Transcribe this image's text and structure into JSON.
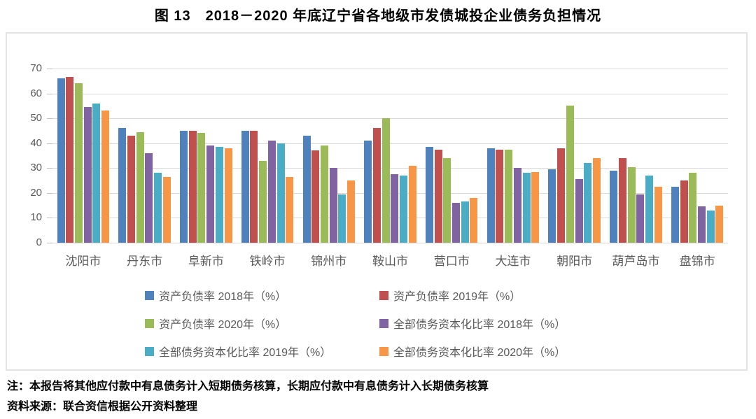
{
  "title": "图 13　2018－2020 年底辽宁省各地级市发债城投企业债务负担情况",
  "chart_data": {
    "type": "bar",
    "categories": [
      "沈阳市",
      "丹东市",
      "阜新市",
      "铁岭市",
      "锦州市",
      "鞍山市",
      "营口市",
      "大连市",
      "朝阳市",
      "葫芦岛市",
      "盘锦市"
    ],
    "series": [
      {
        "name": "资产负债率 2018年（%）",
        "color": "#4F81BD",
        "values": [
          66,
          46,
          45,
          45,
          43,
          41,
          38.5,
          38,
          29.5,
          29,
          22.5
        ]
      },
      {
        "name": "资产负债率 2019年（%）",
        "color": "#C0504D",
        "values": [
          66.5,
          43,
          45,
          45,
          37,
          46,
          37.5,
          37.5,
          38,
          34,
          25
        ]
      },
      {
        "name": "资产负债率 2020年（%）",
        "color": "#9BBB59",
        "values": [
          64,
          44.5,
          44,
          33,
          39,
          50,
          34,
          37.5,
          55,
          30.5,
          28
        ]
      },
      {
        "name": "全部债务资本化比率 2018年（%）",
        "color": "#8064A2",
        "values": [
          54.5,
          36,
          39,
          41,
          30,
          27.5,
          16,
          30,
          25.5,
          19.5,
          14.5
        ]
      },
      {
        "name": "全部债务资本化比率 2019年（%）",
        "color": "#4BACC6",
        "values": [
          56,
          28,
          38.5,
          40,
          19.5,
          27,
          16.5,
          28,
          32,
          27,
          13
        ]
      },
      {
        "name": "全部债务资本化比率 2020年（%）",
        "color": "#F79646",
        "values": [
          53,
          26.5,
          38,
          26.5,
          25,
          31,
          18,
          28.5,
          34,
          22.5,
          15
        ]
      }
    ],
    "ylim": [
      0,
      70
    ],
    "yticks": [
      0,
      10,
      20,
      30,
      40,
      50,
      60,
      70
    ],
    "grid": true,
    "legend_position": "bottom",
    "gridline_color": "#d9d9d9"
  },
  "notes": {
    "line1": "注：本报告将其他应付款中有息债务计入短期债务核算，长期应付款中有息债务计入长期债务核算",
    "line2": "资料来源：联合资信根据公开资料整理"
  }
}
